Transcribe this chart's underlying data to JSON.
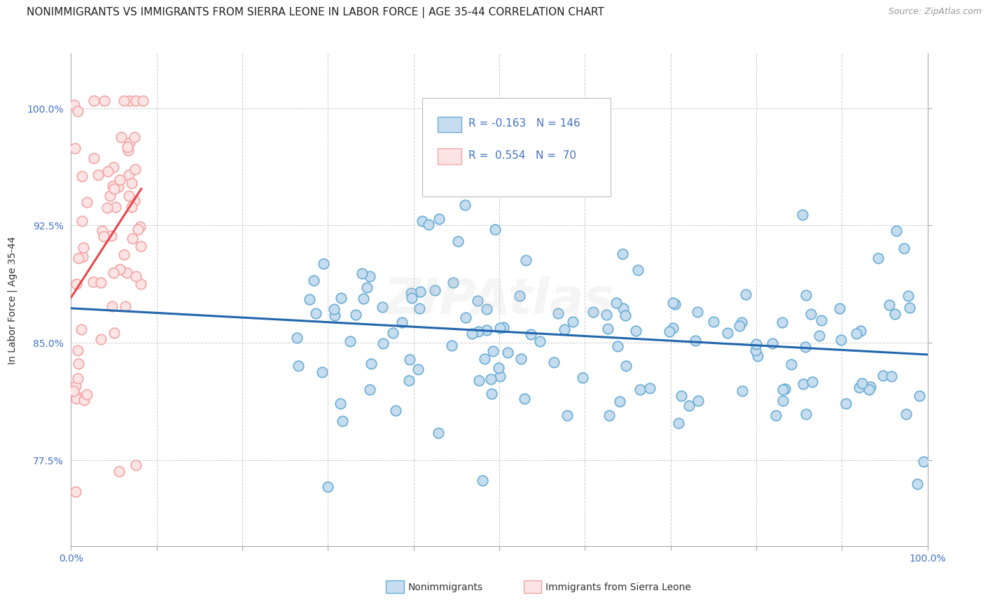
{
  "title": "NONIMMIGRANTS VS IMMIGRANTS FROM SIERRA LEONE IN LABOR FORCE | AGE 35-44 CORRELATION CHART",
  "source": "Source: ZipAtlas.com",
  "ylabel": "In Labor Force | Age 35-44",
  "yticks": [
    0.775,
    0.85,
    0.925,
    1.0
  ],
  "ytick_labels": [
    "77.5%",
    "85.0%",
    "92.5%",
    "100.0%"
  ],
  "xmin": 0.0,
  "xmax": 1.0,
  "ymin": 0.72,
  "ymax": 1.035,
  "legend_r_nonimm": "-0.163",
  "legend_n_nonimm": "146",
  "legend_r_imm": "0.554",
  "legend_n_imm": "70",
  "legend_label_nonimm": "Nonimmigrants",
  "legend_label_imm": "Immigrants from Sierra Leone",
  "nonimm_edge_color": "#6baed6",
  "nonimm_face_color": "#c6dcef",
  "imm_edge_color": "#f4a5a5",
  "imm_face_color": "#fce4e4",
  "trendline_nonimm_color": "#2166ac",
  "trendline_imm_color": "#e8474a",
  "background_color": "#ffffff",
  "grid_color": "#cccccc",
  "title_fontsize": 11,
  "axis_label_fontsize": 10,
  "tick_fontsize": 10,
  "watermark_text": "ZIPAtlas",
  "watermark_alpha": 0.18,
  "R_nonimm": -0.163,
  "N_nonimm": 146,
  "R_imm": 0.554,
  "N_imm": 70
}
